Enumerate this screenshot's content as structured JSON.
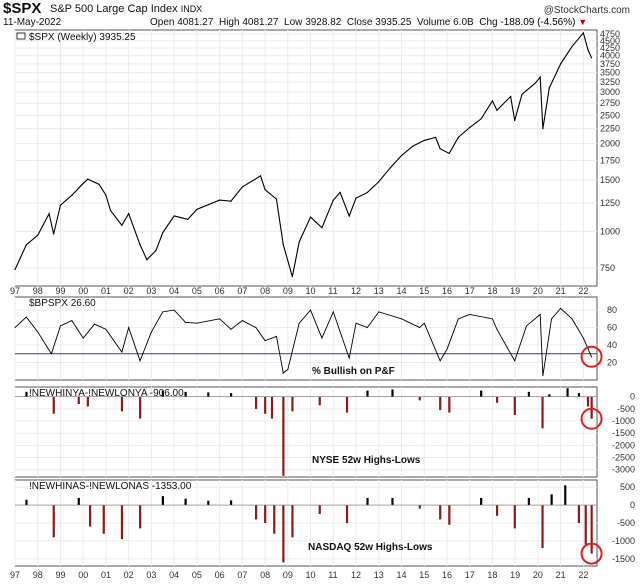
{
  "header": {
    "ticker": "$SPX",
    "description": "S&P 500 Large Cap Index",
    "exchange": "INDX",
    "date": "11-May-2022",
    "open_label": "Open",
    "open": "4081.27",
    "high_label": "High",
    "high": "4081.27",
    "low_label": "Low",
    "low": "3928.82",
    "close_label": "Close",
    "close": "3935.25",
    "volume_label": "Volume",
    "volume": "6.0B",
    "chg_label": "Chg",
    "chg": "-188.09 (-4.56%)",
    "chg_arrow": "▼",
    "copyright": "@StockCharts.com"
  },
  "colors": {
    "price": "#000000",
    "bar_pos": "#000000",
    "bar_neg": "#8b1a1a",
    "circle": "#e02020",
    "ref_line": "#3a3a8a"
  },
  "chart_data": [
    {
      "type": "line",
      "legend": "$SPX (Weekly) 3935.25",
      "scale": "log",
      "x_tick_labels": [
        "97",
        "98",
        "99",
        "00",
        "01",
        "02",
        "03",
        "04",
        "05",
        "06",
        "07",
        "08",
        "09",
        "10",
        "11",
        "12",
        "13",
        "14",
        "15",
        "16",
        "17",
        "18",
        "19",
        "20",
        "21",
        "22"
      ],
      "y_tick_labels": [
        750,
        1000,
        1250,
        1500,
        1750,
        2000,
        2250,
        2500,
        2750,
        3000,
        3250,
        3500,
        3750,
        4000,
        4250,
        4500,
        4750
      ],
      "ylim": [
        650,
        4900
      ],
      "x": [
        1997.0,
        1997.5,
        1998.0,
        1998.5,
        1998.7,
        1999.0,
        1999.5,
        2000.0,
        2000.2,
        2000.7,
        2001.0,
        2001.2,
        2001.7,
        2002.0,
        2002.5,
        2002.8,
        2003.2,
        2003.5,
        2004.0,
        2004.6,
        2005.0,
        2006.0,
        2006.5,
        2007.0,
        2007.8,
        2008.0,
        2008.5,
        2008.8,
        2009.2,
        2009.5,
        2010.0,
        2010.5,
        2011.0,
        2011.3,
        2011.7,
        2012.0,
        2012.5,
        2013.0,
        2013.5,
        2014.0,
        2014.5,
        2015.0,
        2015.5,
        2015.7,
        2016.1,
        2016.5,
        2017.0,
        2017.5,
        2018.0,
        2018.2,
        2018.8,
        2018.98,
        2019.3,
        2019.9,
        2020.1,
        2020.22,
        2020.5,
        2021.0,
        2021.5,
        2022.0,
        2022.2,
        2022.36
      ],
      "y": [
        740,
        900,
        970,
        1150,
        980,
        1230,
        1330,
        1460,
        1510,
        1450,
        1330,
        1180,
        1050,
        1150,
        900,
        800,
        860,
        990,
        1130,
        1100,
        1190,
        1280,
        1270,
        1420,
        1550,
        1390,
        1290,
        900,
        700,
        920,
        1120,
        1030,
        1280,
        1360,
        1130,
        1300,
        1360,
        1480,
        1650,
        1820,
        1960,
        2050,
        2100,
        1920,
        1850,
        2100,
        2270,
        2430,
        2800,
        2600,
        2900,
        2400,
        2950,
        3230,
        3380,
        2250,
        3100,
        3750,
        4300,
        4790,
        4200,
        3935
      ]
    },
    {
      "type": "line",
      "legend": "$BPSPX 26.60",
      "annotation": "% Bullish on P&F",
      "y_tick_labels": [
        20,
        40,
        60,
        80
      ],
      "ylim": [
        0,
        95
      ],
      "reference_line": 30,
      "x": [
        1997.0,
        1997.5,
        1998.0,
        1998.6,
        1999.0,
        1999.5,
        2000.0,
        2000.5,
        2001.0,
        2001.7,
        2002.0,
        2002.5,
        2003.0,
        2003.5,
        2004.0,
        2004.5,
        2005.0,
        2006.0,
        2006.5,
        2007.0,
        2007.6,
        2008.0,
        2008.5,
        2008.8,
        2009.0,
        2009.5,
        2010.0,
        2010.5,
        2011.0,
        2011.7,
        2012.0,
        2012.5,
        2013.0,
        2014.0,
        2014.8,
        2015.0,
        2015.7,
        2016.0,
        2016.5,
        2017.0,
        2018.0,
        2018.2,
        2018.98,
        2019.5,
        2020.1,
        2020.22,
        2020.6,
        2021.0,
        2021.5,
        2022.0,
        2022.36
      ],
      "y": [
        60,
        72,
        55,
        30,
        62,
        68,
        48,
        64,
        58,
        32,
        60,
        22,
        55,
        78,
        80,
        66,
        65,
        70,
        58,
        68,
        60,
        45,
        50,
        8,
        12,
        65,
        80,
        48,
        78,
        25,
        65,
        60,
        78,
        70,
        60,
        65,
        22,
        35,
        70,
        75,
        70,
        58,
        22,
        62,
        75,
        5,
        70,
        82,
        70,
        48,
        26.6
      ]
    },
    {
      "type": "bar",
      "legend": "!NEWHINYA-!NEWLONYA -906.00",
      "annotation": "NYSE 52w Highs-Lows",
      "y_tick_labels": [
        0,
        -500,
        -1000,
        -1500,
        -2000,
        -2500,
        -3000
      ],
      "ylim": [
        -3300,
        400
      ],
      "x": [
        1997.5,
        1998.7,
        1999.8,
        2000.2,
        2001.7,
        2002.5,
        2003.5,
        2004.5,
        2005.5,
        2006.5,
        2007.6,
        2008.0,
        2008.3,
        2008.8,
        2009.2,
        2010.4,
        2011.6,
        2012.5,
        2013.6,
        2014.8,
        2015.7,
        2016.1,
        2017.5,
        2018.2,
        2018.98,
        2019.6,
        2020.2,
        2020.5,
        2021.3,
        2021.8,
        2022.2,
        2022.36
      ],
      "values": [
        200,
        -700,
        -300,
        -400,
        -600,
        -900,
        250,
        200,
        180,
        150,
        -500,
        -700,
        -900,
        -3250,
        -600,
        -350,
        -650,
        250,
        300,
        -150,
        -550,
        -650,
        250,
        -250,
        -750,
        200,
        -1300,
        100,
        350,
        150,
        -400,
        -906
      ]
    },
    {
      "type": "bar",
      "legend": "!NEWHINAS-!NEWLONAS -1353.00",
      "annotation": "NASDAQ 52w Highs-Lows",
      "y_tick_labels": [
        500,
        0,
        -500,
        -1000,
        -1500
      ],
      "ylim": [
        -1700,
        700
      ],
      "x": [
        1997.5,
        1998.7,
        1999.8,
        2000.3,
        2000.9,
        2001.7,
        2002.5,
        2003.5,
        2004.5,
        2005.5,
        2006.5,
        2007.6,
        2008.0,
        2008.4,
        2008.8,
        2009.2,
        2010.4,
        2011.6,
        2012.5,
        2013.6,
        2014.8,
        2015.7,
        2016.1,
        2017.5,
        2018.2,
        2018.98,
        2019.6,
        2020.2,
        2020.6,
        2021.2,
        2021.8,
        2022.1,
        2022.36
      ],
      "values": [
        150,
        -900,
        200,
        -600,
        -800,
        -950,
        -650,
        250,
        180,
        120,
        130,
        -400,
        -500,
        -800,
        -1600,
        -900,
        -250,
        -500,
        200,
        200,
        -100,
        -400,
        -550,
        200,
        -300,
        -650,
        200,
        -1200,
        300,
        550,
        -500,
        -1100,
        -1353
      ]
    }
  ]
}
